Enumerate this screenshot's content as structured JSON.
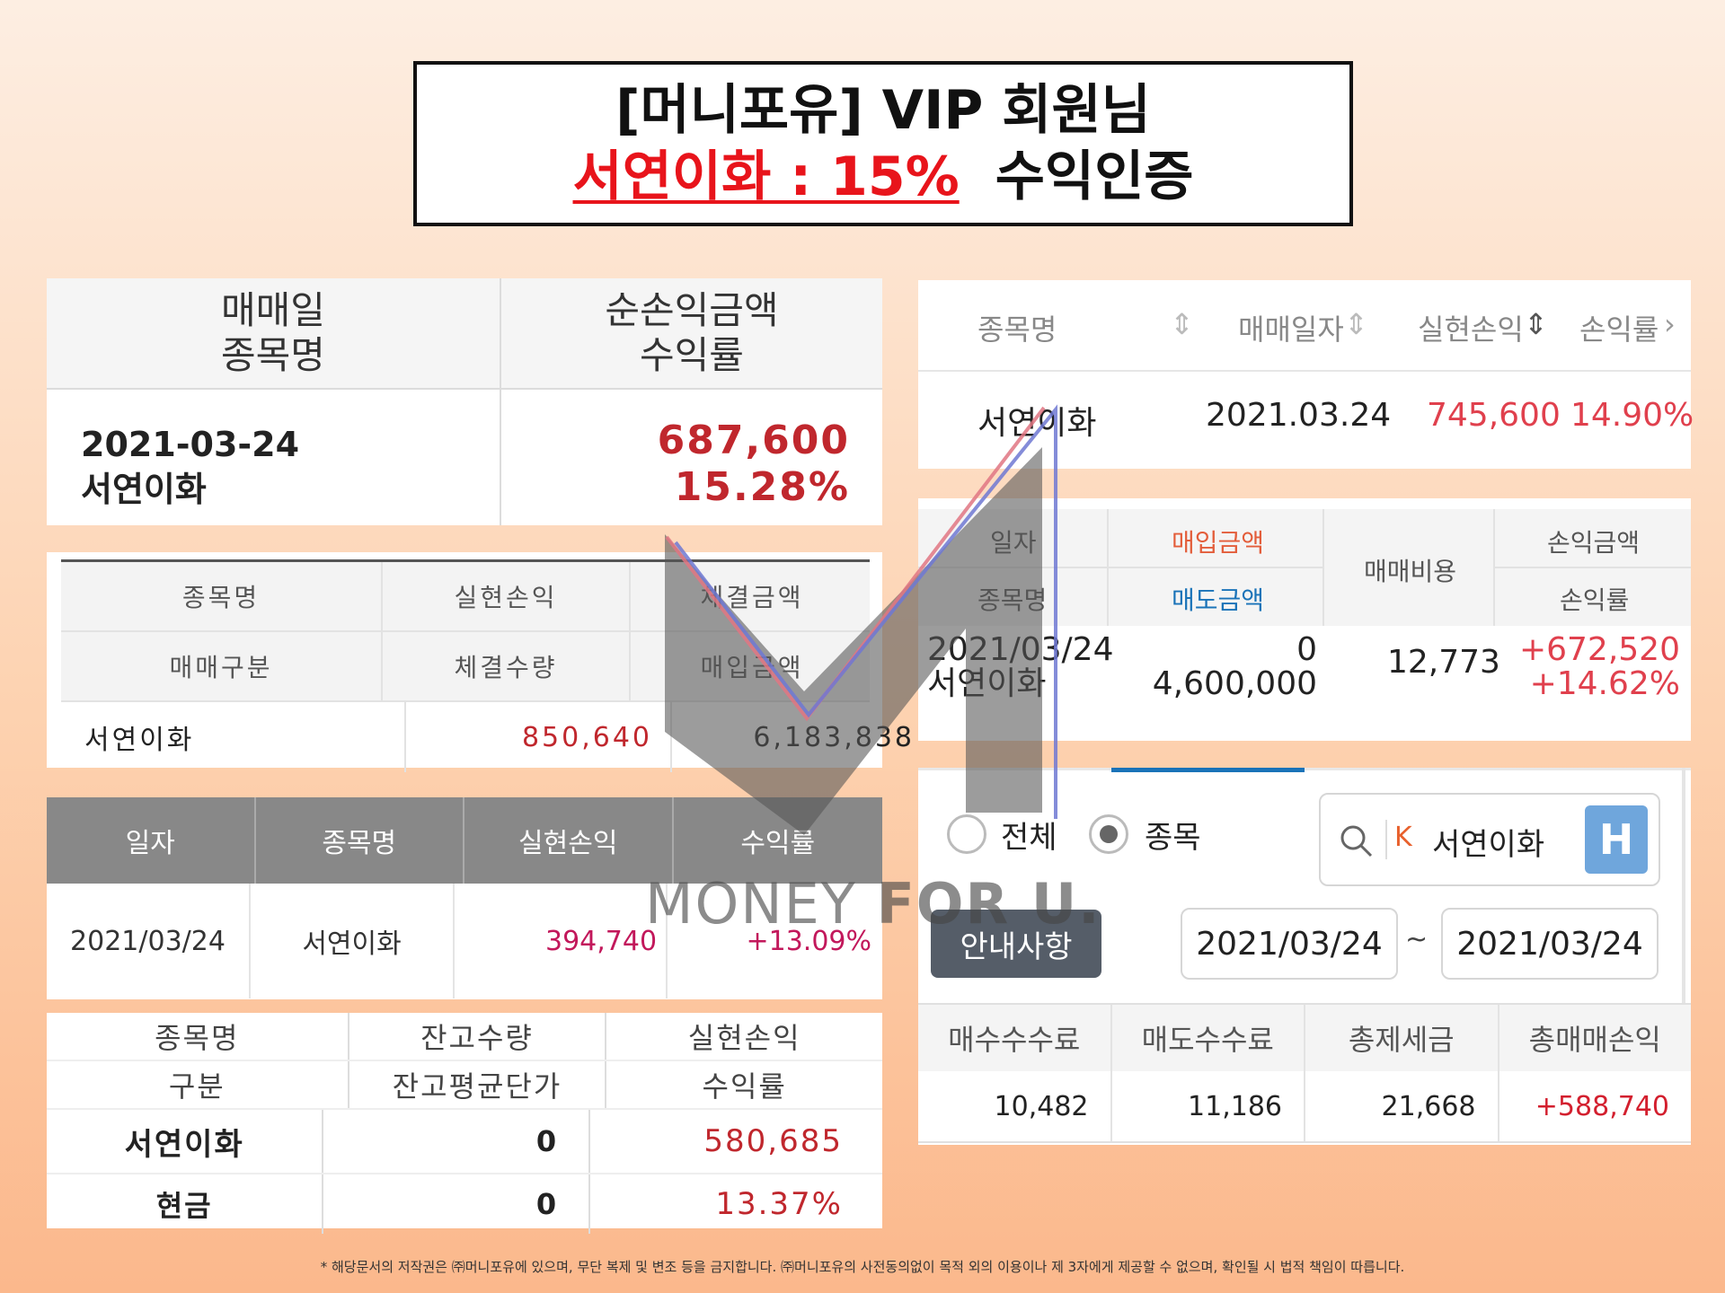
{
  "title": {
    "line1": "[머니포유] VIP 회원님",
    "line2_red": "서연이화 : 15%",
    "line2_black": "수익인증"
  },
  "panel_a": {
    "head_left": [
      "매매일",
      "종목명"
    ],
    "head_right": [
      "순손익금액",
      "수익률"
    ],
    "date": "2021-03-24",
    "stock": "서연이화",
    "amount": "687,600",
    "rate": "15.28%"
  },
  "panel_b": {
    "headers_row1": [
      "종목명",
      "실현손익",
      "체결금액"
    ],
    "headers_row2": [
      "매매구분",
      "체결수량",
      "매입금액"
    ],
    "row": [
      "서연이화",
      "850,640",
      "6,183,838"
    ]
  },
  "panel_c": {
    "headers": [
      "일자",
      "종목명",
      "실현손익",
      "수익률"
    ],
    "row": [
      "2021/03/24",
      "서연이화",
      "394,740",
      "+13.09%"
    ]
  },
  "panel_d": {
    "headers_row1": [
      "종목명",
      "잔고수량",
      "실현손익"
    ],
    "headers_row2": [
      "구분",
      "잔고평균단가",
      "수익률"
    ],
    "row1": [
      "서연이화",
      "0",
      "580,685"
    ],
    "row2": [
      "현금",
      "0",
      "13.37%"
    ]
  },
  "panel_e": {
    "headers": [
      "종목명",
      "매매일자",
      "실현손익",
      "손익률"
    ],
    "sort_icon": "⇕",
    "chevron": "›",
    "row": [
      "서연이화",
      "2021.03.24",
      "745,600",
      "14.90%"
    ]
  },
  "panel_f": {
    "h_date": "일자",
    "h_stock": "종목명",
    "h_buy": "매입금액",
    "h_sell": "매도금액",
    "h_fee": "매매비용",
    "h_pl": "손익금액",
    "h_rate": "손익률",
    "date": "2021/03/24",
    "stock": "서연이화",
    "buy": "0",
    "sell": "4,600,000",
    "fee": "12,773",
    "pl": "+672,520",
    "rate": "+14.62%"
  },
  "panel_g": {
    "radio_all": "전체",
    "radio_stock": "종목",
    "search_prefix": "K",
    "search_value": "서연이화",
    "h_button": "H",
    "notice_button": "안내사항",
    "date_from": "2021/03/24",
    "tilde": "~",
    "date_to": "2021/03/24",
    "headers": [
      "매수수수료",
      "매도수수료",
      "총제세금",
      "총매매손익"
    ],
    "values": [
      "10,482",
      "11,186",
      "21,668",
      "+588,740"
    ]
  },
  "watermark": {
    "part1": "MONEY ",
    "part2": "FOR U."
  },
  "footer": "* 해당문서의 저작권은 ㈜머니포유에 있으며, 무단 복제 및 변조 등을 금지합니다. ㈜머니포유의 사전동의없이 목적 외의 이용이나 제 3자에게 제공할 수 없으며, 확인될 시 법적 책임이 따릅니다.",
  "colors": {
    "red": "#e8141b",
    "profit_red": "#c0272d",
    "pink": "#c2185b",
    "blue": "#1a73b8",
    "h_badge": "#6fa6dc"
  }
}
